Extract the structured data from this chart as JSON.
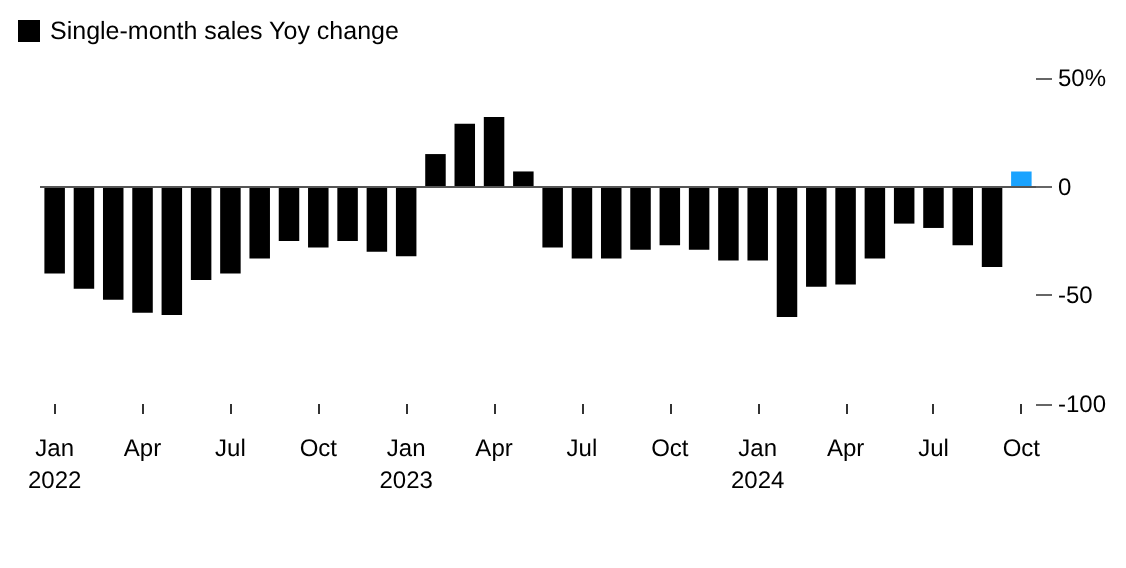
{
  "chart_data": {
    "type": "bar",
    "categories": [
      "Jan\n2022",
      null,
      null,
      "Apr",
      null,
      null,
      "Jul",
      null,
      null,
      "Oct",
      null,
      null,
      "Jan\n2023",
      null,
      null,
      "Apr",
      null,
      null,
      "Jul",
      null,
      null,
      "Oct",
      null,
      null,
      "Jan\n2024",
      null,
      null,
      "Apr",
      null,
      null,
      "Jul",
      null,
      null,
      "Oct"
    ],
    "series": [
      {
        "name": "Single-month sales Yoy change",
        "color": "#000000",
        "values": [
          -40,
          -47,
          -52,
          -58,
          -59,
          -43,
          -40,
          -33,
          -25,
          -28,
          -25,
          -30,
          -32,
          15,
          29,
          32,
          7,
          -28,
          -33,
          -33,
          -29,
          -27,
          -29,
          -34,
          -34,
          -60,
          -46,
          -45,
          -33,
          -17,
          -19,
          -27,
          -37,
          7
        ],
        "colors": [
          "#000000",
          "#000000",
          "#000000",
          "#000000",
          "#000000",
          "#000000",
          "#000000",
          "#000000",
          "#000000",
          "#000000",
          "#000000",
          "#000000",
          "#000000",
          "#000000",
          "#000000",
          "#000000",
          "#000000",
          "#000000",
          "#000000",
          "#000000",
          "#000000",
          "#000000",
          "#000000",
          "#000000",
          "#000000",
          "#000000",
          "#000000",
          "#000000",
          "#000000",
          "#000000",
          "#000000",
          "#000000",
          "#000000",
          "#1aa3ff"
        ]
      }
    ],
    "ylim": [
      -100,
      50
    ],
    "yticks": [
      {
        "value": 50,
        "label": "50%"
      },
      0,
      -50,
      -100
    ],
    "ref_lines": [
      {
        "axis": "y",
        "value": 0,
        "color": "#555555"
      }
    ],
    "legend": "top left"
  }
}
